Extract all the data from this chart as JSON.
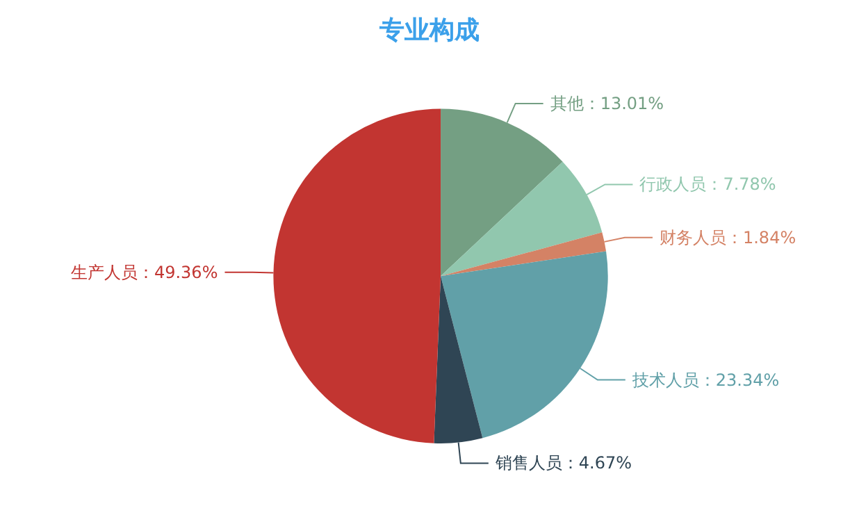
{
  "chart_data": {
    "type": "pie",
    "title": "专业构成",
    "categories": [
      "其他",
      "行政人员",
      "财务人员",
      "技术人员",
      "销售人员",
      "生产人员"
    ],
    "values": [
      13.01,
      7.78,
      1.84,
      23.34,
      4.67,
      49.36
    ],
    "value_labels": [
      "13.01%",
      "7.78%",
      "1.84%",
      "23.34%",
      "4.67%",
      "49.36%"
    ],
    "colors": [
      "#749f83",
      "#91c7ae",
      "#d48265",
      "#61a0a8",
      "#2f4554",
      "#c23531"
    ],
    "legend": false
  }
}
